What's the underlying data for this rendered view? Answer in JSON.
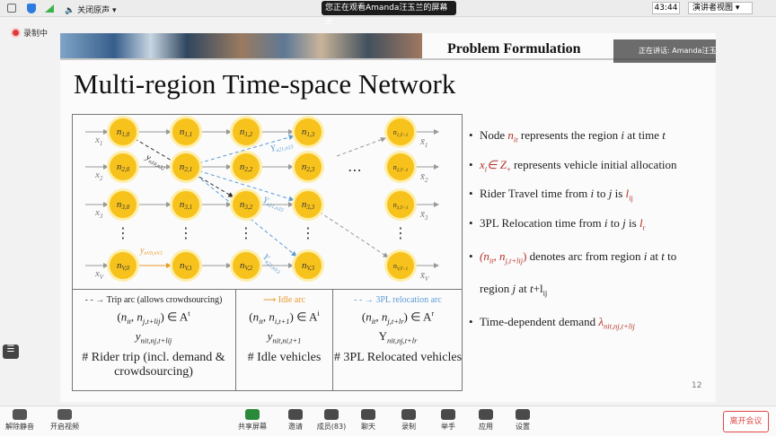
{
  "top_bar": {
    "audio": "关闭原声",
    "viewing": "您正在观看Amanda汪玉兰的屏幕",
    "timer": "43:44",
    "view_mode": "演讲者视图"
  },
  "recording": "录制中",
  "slide": {
    "header": "Problem Formulation",
    "speaker": "正在讲话: Amanda汪玉兰",
    "title": "Multi-region Time-space Network",
    "page_number": "12",
    "network": {
      "node_symbol": "n",
      "nodes": [
        [
          "1,0",
          "1,1",
          "1,2",
          "1,3",
          "1,T−1"
        ],
        [
          "2,0",
          "2,1",
          "2,2",
          "2,3",
          "2,T−1"
        ],
        [
          "3,0",
          "3,1",
          "3,2",
          "3,3",
          "3,T−1"
        ],
        [
          "V,0",
          "V,1",
          "V,2",
          "V,3",
          "V,T−1"
        ]
      ],
      "input_symbol": "x",
      "output_symbol": "x̄",
      "row_subscripts": [
        "1",
        "2",
        "3",
        "V"
      ],
      "vertical_dots": "⋮",
      "horizontal_dots": "⋯",
      "arc_labels": [
        {
          "symbol": "y",
          "sub": "n10,n32",
          "color": "#222222"
        },
        {
          "symbol": "Υ",
          "sub": "n21,n13",
          "color": "#5b9bd5"
        },
        {
          "symbol": "Υ",
          "sub": "n21,n33",
          "color": "#5b9bd5"
        },
        {
          "symbol": "Υ",
          "sub": "n21,nV3",
          "color": "#5b9bd5"
        },
        {
          "symbol": "y",
          "sub": "nV0,nV1",
          "color": "#e89a2c"
        }
      ]
    },
    "table": {
      "columns": [
        {
          "legend": "Trip arc (allows crowdsourcing)",
          "formula": [
            "(",
            {
              "t": "n",
              "i": true
            },
            {
              "t": "it",
              "s": "sub",
              "i": true
            },
            ", ",
            {
              "t": "n",
              "i": true
            },
            {
              "t": "j,t+lij",
              "s": "sub",
              "i": true
            },
            ") ∈ ",
            {
              "t": "A"
            },
            {
              "t": "t",
              "s": "sup"
            }
          ],
          "variable": [
            {
              "t": "y",
              "i": true
            },
            {
              "t": "nit,nj,t+lij",
              "s": "sub",
              "i": true
            }
          ],
          "description": "# Rider trip (incl. demand & crowdsourcing)"
        },
        {
          "legend": "Idle arc",
          "formula": [
            "(",
            {
              "t": "n",
              "i": true
            },
            {
              "t": "it",
              "s": "sub",
              "i": true
            },
            ", ",
            {
              "t": "n",
              "i": true
            },
            {
              "t": "i,t+1",
              "s": "sub",
              "i": true
            },
            ") ∈ ",
            {
              "t": "A"
            },
            {
              "t": "i",
              "s": "sup"
            }
          ],
          "variable": [
            {
              "t": "y",
              "i": true
            },
            {
              "t": "nit,ni,t+1",
              "s": "sub",
              "i": true
            }
          ],
          "description": "# Idle vehicles"
        },
        {
          "legend": "3PL relocation arc",
          "formula": [
            "(",
            {
              "t": "n",
              "i": true
            },
            {
              "t": "it",
              "s": "sub",
              "i": true
            },
            ", ",
            {
              "t": "n",
              "i": true
            },
            {
              "t": "j,t+lr",
              "s": "sub",
              "i": true
            },
            ") ∈ ",
            {
              "t": "A"
            },
            {
              "t": "r",
              "s": "sup"
            }
          ],
          "variable": [
            {
              "t": "Υ"
            },
            {
              "t": "nit,nj,t+lr",
              "s": "sub",
              "i": true
            }
          ],
          "description": "# 3PL Relocated vehicles"
        }
      ]
    },
    "bullets": [
      {
        "lines": [
          [
            "Node ",
            {
              "t": "n",
              "i": true,
              "c": "#b5322a"
            },
            {
              "t": "it",
              "s": "sub",
              "i": true,
              "c": "#b5322a"
            },
            " represents the region ",
            {
              "t": "i",
              "i": true
            },
            " at time ",
            {
              "t": "t",
              "i": true
            }
          ]
        ]
      },
      {
        "lines": [
          [
            {
              "t": "x",
              "i": true,
              "c": "#b5322a"
            },
            {
              "t": "i",
              "s": "sub",
              "i": true,
              "c": "#b5322a"
            },
            {
              "t": "∈ Z",
              "i": true,
              "c": "#b5322a"
            },
            {
              "t": "+",
              "s": "sub",
              "c": "#b5322a"
            },
            " represents vehicle initial allocation"
          ]
        ]
      },
      {
        "lines": [
          [
            "Rider Travel time from ",
            {
              "t": "i",
              "i": true
            },
            " to ",
            {
              "t": "j",
              "i": true
            },
            " is ",
            {
              "t": "l",
              "i": true,
              "c": "#b5322a"
            },
            {
              "t": "ij",
              "s": "sub",
              "c": "#b5322a"
            }
          ]
        ]
      },
      {
        "lines": [
          [
            "3PL Relocation time from ",
            {
              "t": "i",
              "i": true
            },
            " to ",
            {
              "t": "j",
              "i": true
            },
            " is ",
            {
              "t": "l",
              "i": true,
              "c": "#b5322a"
            },
            {
              "t": "r",
              "s": "sub",
              "c": "#b5322a"
            }
          ]
        ]
      },
      {
        "lines": [
          [
            {
              "t": "(n",
              "i": true,
              "c": "#b5322a"
            },
            {
              "t": "it",
              "s": "sub",
              "i": true,
              "c": "#b5322a"
            },
            {
              "t": ", n",
              "i": true,
              "c": "#b5322a"
            },
            {
              "t": "j,t+lij",
              "s": "sub",
              "i": true,
              "c": "#b5322a"
            },
            {
              "t": ")",
              "c": "#b5322a"
            },
            " denotes arc from region ",
            {
              "t": "i",
              "i": true
            },
            " at ",
            {
              "t": "t",
              "i": true
            },
            " to"
          ],
          [
            "region ",
            {
              "t": "j",
              "i": true
            },
            " at ",
            {
              "t": "t",
              "i": true
            },
            "+",
            {
              "t": "l"
            },
            {
              "t": "ij",
              "s": "sub"
            }
          ]
        ]
      },
      {
        "lines": [
          [
            "Time-dependent demand ",
            {
              "t": "λ",
              "i": true,
              "c": "#b5322a"
            },
            {
              "t": "nit,nj,t+lij",
              "s": "sub",
              "i": true,
              "c": "#b5322a"
            }
          ]
        ]
      }
    ]
  },
  "bottom_bar": {
    "items": [
      "解除静音",
      "开启视频",
      "共享屏幕",
      "邀请",
      "成员(83)",
      "聊天",
      "录制",
      "举手",
      "应用",
      "设置"
    ],
    "leave": "离开会议"
  }
}
